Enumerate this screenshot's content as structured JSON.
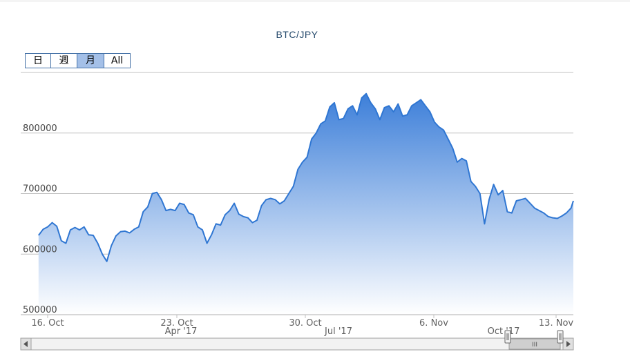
{
  "chart": {
    "title": "BTC/JPY",
    "range_selector": {
      "buttons": [
        "日",
        "週",
        "月",
        "All"
      ],
      "selected": "月"
    },
    "navigator": {
      "labels": [
        "Apr '17",
        "Jul '17",
        "Oct '17"
      ],
      "grip": "III"
    },
    "colors": {
      "line": "#2f76d2",
      "fill_top": "#3d7fd9",
      "fill_bottom": "#ffffff",
      "grid": "#c0c0c0",
      "title": "#274b6d"
    }
  },
  "chart_data": {
    "type": "area",
    "title": "BTC/JPY",
    "xlabel": "",
    "ylabel": "",
    "x_range": [
      "2017-10-16",
      "2017-11-14"
    ],
    "ylim": [
      500000,
      900000
    ],
    "y_ticks": [
      500000,
      600000,
      700000,
      800000
    ],
    "x_tick_labels": [
      "16. Oct",
      "23. Oct",
      "30. Oct",
      "6. Nov",
      "13. Nov"
    ],
    "grid": "horizontal",
    "legend": "none",
    "series": [
      {
        "x": [
          "2017-10-15 12:00",
          "2017-10-15 18:00",
          "2017-10-16 00:00",
          "2017-10-16 06:00",
          "2017-10-16 12:00",
          "2017-10-16 18:00",
          "2017-10-17 00:00",
          "2017-10-17 06:00",
          "2017-10-17 12:00",
          "2017-10-17 18:00",
          "2017-10-18 00:00",
          "2017-10-18 06:00",
          "2017-10-18 12:00",
          "2017-10-18 18:00",
          "2017-10-19 00:00",
          "2017-10-19 06:00",
          "2017-10-19 12:00",
          "2017-10-19 18:00",
          "2017-10-20 00:00",
          "2017-10-20 06:00",
          "2017-10-20 12:00",
          "2017-10-20 18:00",
          "2017-10-21 00:00",
          "2017-10-21 06:00",
          "2017-10-21 12:00",
          "2017-10-21 18:00",
          "2017-10-22 00:00",
          "2017-10-22 06:00",
          "2017-10-22 12:00",
          "2017-10-22 18:00",
          "2017-10-23 00:00",
          "2017-10-23 06:00",
          "2017-10-23 12:00",
          "2017-10-23 18:00",
          "2017-10-24 00:00",
          "2017-10-24 06:00",
          "2017-10-24 12:00",
          "2017-10-24 18:00",
          "2017-10-25 00:00",
          "2017-10-25 06:00",
          "2017-10-25 12:00",
          "2017-10-25 18:00",
          "2017-10-26 00:00",
          "2017-10-26 06:00",
          "2017-10-26 12:00",
          "2017-10-26 18:00",
          "2017-10-27 00:00",
          "2017-10-27 06:00",
          "2017-10-27 12:00",
          "2017-10-27 18:00",
          "2017-10-28 00:00",
          "2017-10-28 06:00",
          "2017-10-28 12:00",
          "2017-10-28 18:00",
          "2017-10-29 00:00",
          "2017-10-29 06:00",
          "2017-10-29 12:00",
          "2017-10-29 18:00",
          "2017-10-30 00:00",
          "2017-10-30 06:00",
          "2017-10-30 12:00",
          "2017-10-30 18:00",
          "2017-10-31 00:00",
          "2017-10-31 06:00",
          "2017-10-31 12:00",
          "2017-10-31 18:00",
          "2017-11-01 00:00",
          "2017-11-01 06:00",
          "2017-11-01 12:00",
          "2017-11-01 18:00",
          "2017-11-02 00:00",
          "2017-11-02 06:00",
          "2017-11-02 12:00",
          "2017-11-02 18:00",
          "2017-11-03 00:00",
          "2017-11-03 06:00",
          "2017-11-03 12:00",
          "2017-11-03 18:00",
          "2017-11-04 00:00",
          "2017-11-04 06:00",
          "2017-11-04 12:00",
          "2017-11-04 18:00",
          "2017-11-05 00:00",
          "2017-11-05 06:00",
          "2017-11-05 12:00",
          "2017-11-05 18:00",
          "2017-11-06 00:00",
          "2017-11-06 06:00",
          "2017-11-06 12:00",
          "2017-11-06 18:00",
          "2017-11-07 00:00",
          "2017-11-07 06:00",
          "2017-11-07 12:00",
          "2017-11-07 18:00",
          "2017-11-08 00:00",
          "2017-11-08 06:00",
          "2017-11-08 12:00",
          "2017-11-08 18:00",
          "2017-11-09 00:00",
          "2017-11-09 06:00",
          "2017-11-09 12:00",
          "2017-11-09 18:00",
          "2017-11-10 00:00",
          "2017-11-10 06:00",
          "2017-11-10 12:00",
          "2017-11-10 18:00",
          "2017-11-11 00:00",
          "2017-11-11 06:00",
          "2017-11-11 12:00",
          "2017-11-11 18:00",
          "2017-11-12 00:00",
          "2017-11-12 06:00",
          "2017-11-12 12:00",
          "2017-11-12 18:00",
          "2017-11-13 00:00",
          "2017-11-13 06:00",
          "2017-11-13 12:00",
          "2017-11-13 18:00",
          "2017-11-14 00:00"
        ],
        "values": [
          631000,
          641000,
          645000,
          652000,
          646000,
          622000,
          618000,
          640000,
          644000,
          640000,
          645000,
          632000,
          631000,
          618000,
          600000,
          588000,
          614000,
          630000,
          637000,
          638000,
          635000,
          641000,
          645000,
          670000,
          678000,
          700000,
          702000,
          690000,
          672000,
          674000,
          672000,
          684000,
          682000,
          668000,
          665000,
          645000,
          640000,
          618000,
          632000,
          650000,
          648000,
          665000,
          672000,
          684000,
          666000,
          662000,
          660000,
          652000,
          656000,
          680000,
          690000,
          692000,
          690000,
          683000,
          688000,
          700000,
          712000,
          740000,
          752000,
          760000,
          790000,
          800000,
          815000,
          820000,
          843000,
          850000,
          822000,
          824000,
          840000,
          845000,
          830000,
          858000,
          865000,
          850000,
          840000,
          822000,
          842000,
          845000,
          835000,
          848000,
          828000,
          830000,
          845000,
          850000,
          855000,
          845000,
          835000,
          818000,
          810000,
          805000,
          790000,
          775000,
          752000,
          758000,
          754000,
          720000,
          712000,
          700000,
          650000,
          690000,
          715000,
          698000,
          705000,
          670000,
          668000,
          688000,
          690000,
          692000,
          684000,
          676000,
          672000,
          668000,
          662000,
          660000,
          659000,
          663000,
          668000,
          676000,
          688000
        ]
      }
    ]
  }
}
